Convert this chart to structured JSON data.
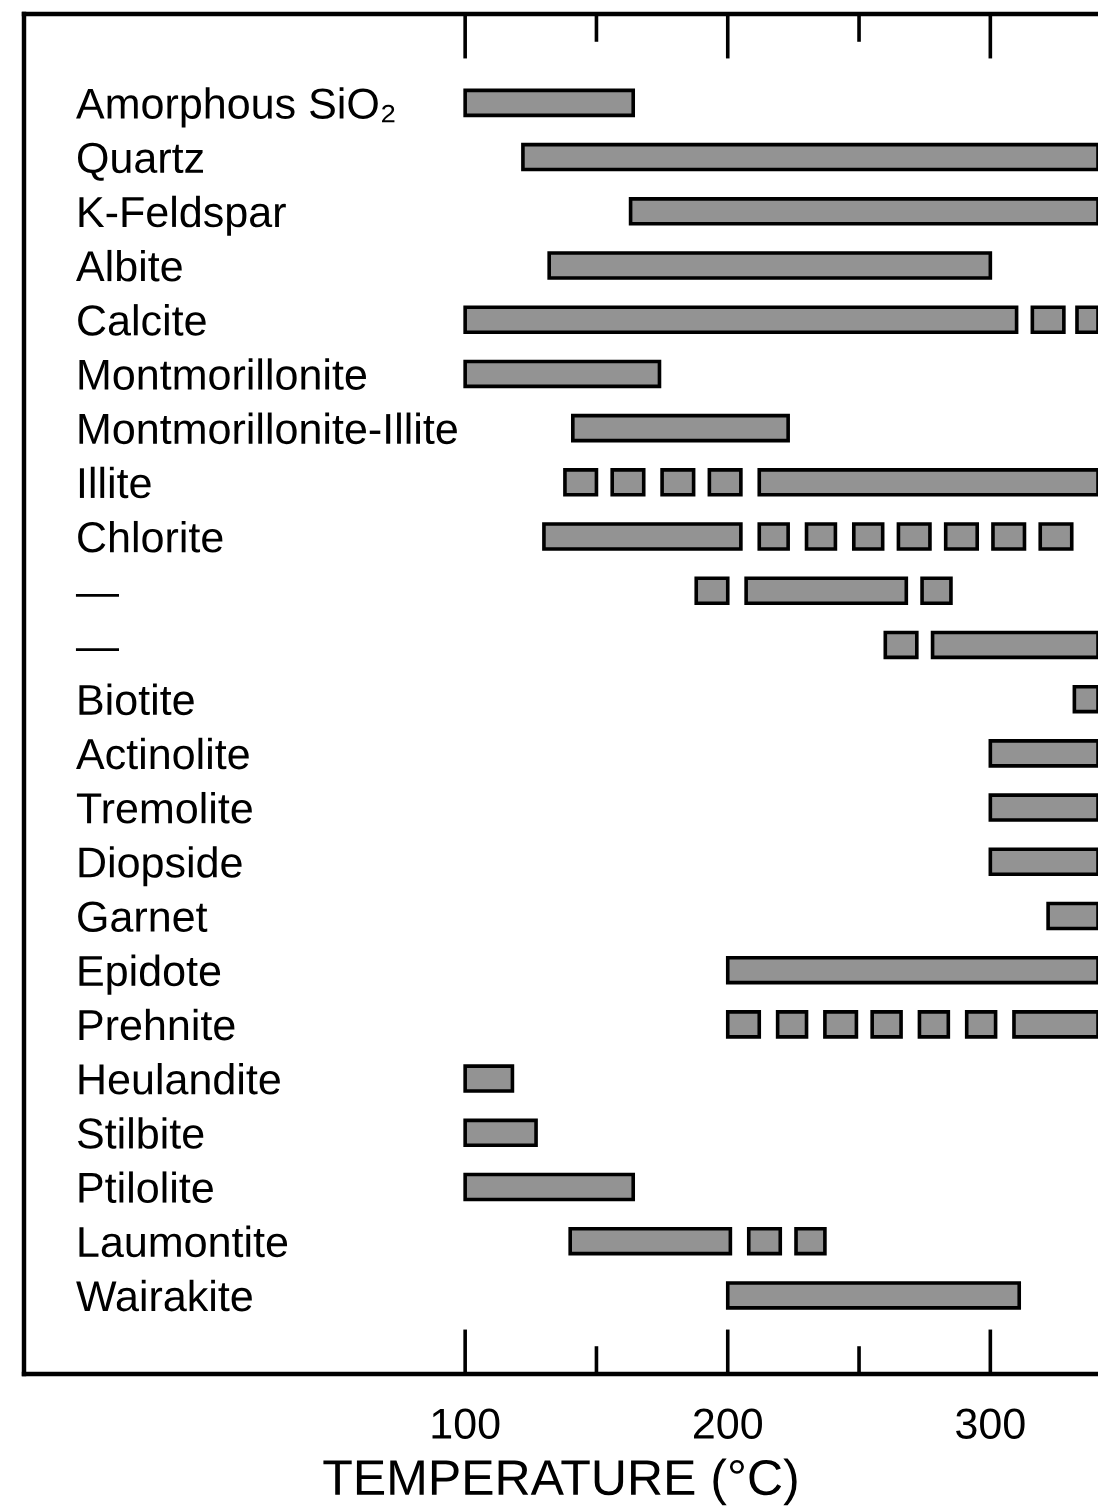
{
  "chart_data": {
    "type": "bar",
    "orientation": "horizontal",
    "xlabel": "TEMPERATURE (°C)",
    "categories": [
      "Amorphous SiO₂",
      "Quartz",
      "K-Feldspar",
      "Albite",
      "Calcite",
      "Montmorillonite",
      "Montmorillonite-Illite",
      "Illite",
      "Chlorite",
      "—",
      "—",
      "Biotite",
      "Actinolite",
      "Tremolite",
      "Diopside",
      "Garnet",
      "Epidote",
      "Prehnite",
      "Heulandite",
      "Stilbite",
      "Ptilolite",
      "Laumontite",
      "Wairakite"
    ],
    "xlim": [
      -68,
      341
    ],
    "xticks": [
      100,
      {
        "value": 150,
        "label": null
      },
      200,
      {
        "value": 250,
        "label": null
      },
      300
    ],
    "series": [
      {
        "color": "#939393",
        "base": [
          100,
          122,
          163,
          132,
          100,
          100,
          141,
          138,
          130,
          188,
          260,
          332,
          300,
          300,
          300,
          322,
          200,
          200,
          100,
          100,
          100,
          140,
          200
        ],
        "values": [
          64,
          219,
          178,
          168,
          210,
          74,
          82,
          12,
          75,
          12,
          12,
          9,
          41,
          41,
          41,
          19,
          141,
          12,
          18,
          27,
          64,
          61,
          111
        ]
      },
      {
        "color": "#939393",
        "base": [
          null,
          null,
          null,
          null,
          316,
          null,
          null,
          156,
          212,
          207,
          278,
          null,
          null,
          null,
          null,
          null,
          null,
          219,
          null,
          null,
          null,
          208,
          null
        ],
        "values": [
          null,
          null,
          null,
          null,
          12,
          null,
          null,
          12,
          11,
          61,
          63,
          null,
          null,
          null,
          null,
          null,
          null,
          11,
          null,
          null,
          null,
          12,
          null
        ]
      },
      {
        "color": "#939393",
        "base": [
          null,
          null,
          null,
          null,
          333,
          null,
          null,
          175,
          230,
          274,
          null,
          null,
          null,
          null,
          null,
          null,
          null,
          237,
          null,
          null,
          null,
          226,
          null
        ],
        "values": [
          null,
          null,
          null,
          null,
          8,
          null,
          null,
          12,
          11,
          11,
          null,
          null,
          null,
          null,
          null,
          null,
          null,
          12,
          null,
          null,
          null,
          11,
          null
        ]
      },
      {
        "color": "#939393",
        "base": [
          null,
          null,
          null,
          null,
          null,
          null,
          null,
          193,
          248,
          null,
          null,
          null,
          null,
          null,
          null,
          null,
          null,
          255,
          null,
          null,
          null,
          null,
          null
        ],
        "values": [
          null,
          null,
          null,
          null,
          null,
          null,
          null,
          12,
          11,
          null,
          null,
          null,
          null,
          null,
          null,
          null,
          null,
          11,
          null,
          null,
          null,
          null,
          null
        ]
      },
      {
        "color": "#939393",
        "base": [
          null,
          null,
          null,
          null,
          null,
          null,
          null,
          212,
          265,
          null,
          null,
          null,
          null,
          null,
          null,
          null,
          null,
          273,
          null,
          null,
          null,
          null,
          null
        ],
        "values": [
          null,
          null,
          null,
          null,
          null,
          null,
          null,
          129,
          12,
          null,
          null,
          null,
          null,
          null,
          null,
          null,
          null,
          11,
          null,
          null,
          null,
          null,
          null
        ]
      },
      {
        "color": "#939393",
        "base": [
          null,
          null,
          null,
          null,
          null,
          null,
          null,
          null,
          283,
          null,
          null,
          null,
          null,
          null,
          null,
          null,
          null,
          291,
          null,
          null,
          null,
          null,
          null
        ],
        "values": [
          null,
          null,
          null,
          null,
          null,
          null,
          null,
          null,
          12,
          null,
          null,
          null,
          null,
          null,
          null,
          null,
          null,
          11,
          null,
          null,
          null,
          null,
          null
        ]
      },
      {
        "color": "#939393",
        "base": [
          null,
          null,
          null,
          null,
          null,
          null,
          null,
          null,
          301,
          null,
          null,
          null,
          null,
          null,
          null,
          null,
          null,
          309,
          null,
          null,
          null,
          null,
          null
        ],
        "values": [
          null,
          null,
          null,
          null,
          null,
          null,
          null,
          null,
          12,
          null,
          null,
          null,
          null,
          null,
          null,
          null,
          null,
          32,
          null,
          null,
          null,
          null,
          null
        ]
      },
      {
        "color": "#939393",
        "base": [
          null,
          null,
          null,
          null,
          null,
          null,
          null,
          null,
          319,
          null,
          null,
          null,
          null,
          null,
          null,
          null,
          null,
          null,
          null,
          null,
          null,
          null,
          null
        ],
        "values": [
          null,
          null,
          null,
          null,
          null,
          null,
          null,
          null,
          12,
          null,
          null,
          null,
          null,
          null,
          null,
          null,
          null,
          null,
          null,
          null,
          null,
          null,
          null
        ]
      }
    ]
  }
}
